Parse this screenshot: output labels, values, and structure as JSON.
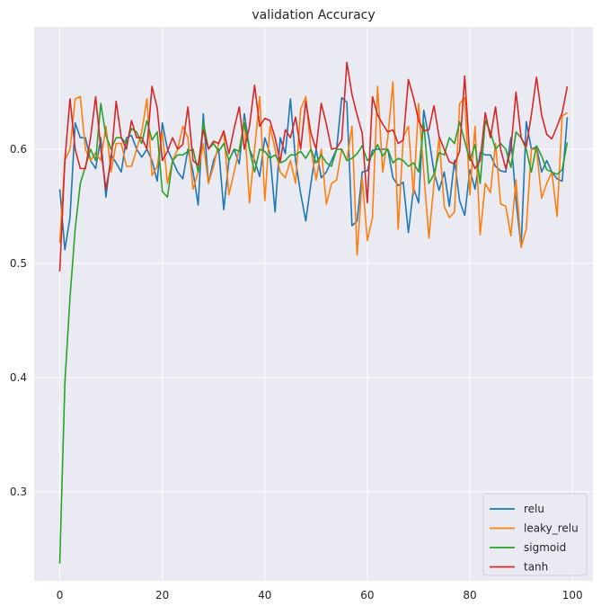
{
  "chart_data": {
    "type": "line",
    "title": "validation Accuracy",
    "xlabel": "",
    "ylabel": "",
    "xlim": [
      -5,
      104
    ],
    "ylim": [
      0.222,
      0.707
    ],
    "xticks": [
      0,
      20,
      40,
      60,
      80,
      100
    ],
    "yticks": [
      0.3,
      0.4,
      0.5,
      0.6
    ],
    "ytick_labels": [
      "0.3",
      "0.4",
      "0.5",
      "0.6"
    ],
    "xtick_labels": [
      "0",
      "20",
      "40",
      "60",
      "80",
      "100"
    ],
    "grid": true,
    "legend_position": "bottom-right",
    "series": [
      {
        "name": "relu",
        "color": "#1f77b4",
        "values": [
          0.565,
          0.512,
          0.54,
          0.623,
          0.61,
          0.61,
          0.59,
          0.583,
          0.61,
          0.558,
          0.595,
          0.588,
          0.58,
          0.61,
          0.612,
          0.6,
          0.593,
          0.6,
          0.59,
          0.572,
          0.623,
          0.6,
          0.59,
          0.58,
          0.574,
          0.6,
          0.58,
          0.551,
          0.631,
          0.57,
          0.59,
          0.6,
          0.547,
          0.59,
          0.6,
          0.587,
          0.631,
          0.6,
          0.59,
          0.576,
          0.61,
          0.596,
          0.545,
          0.61,
          0.596,
          0.644,
          0.59,
          0.561,
          0.537,
          0.57,
          0.6,
          0.575,
          0.58,
          0.59,
          0.6,
          0.645,
          0.641,
          0.533,
          0.537,
          0.58,
          0.581,
          0.599,
          0.6,
          0.6,
          0.6,
          0.575,
          0.568,
          0.571,
          0.527,
          0.566,
          0.553,
          0.634,
          0.61,
          0.58,
          0.564,
          0.58,
          0.55,
          0.59,
          0.555,
          0.542,
          0.582,
          0.565,
          0.597,
          0.595,
          0.595,
          0.585,
          0.581,
          0.58,
          0.61,
          0.555,
          0.514,
          0.624,
          0.6,
          0.602,
          0.58,
          0.59,
          0.58,
          0.574,
          0.572,
          0.628
        ]
      },
      {
        "name": "leaky_relu",
        "color": "#ff7f0e",
        "values": [
          0.518,
          0.59,
          0.6,
          0.644,
          0.646,
          0.6,
          0.59,
          0.597,
          0.59,
          0.62,
          0.58,
          0.605,
          0.605,
          0.585,
          0.585,
          0.6,
          0.615,
          0.644,
          0.577,
          0.585,
          0.615,
          0.57,
          0.59,
          0.6,
          0.62,
          0.61,
          0.565,
          0.58,
          0.605,
          0.57,
          0.585,
          0.605,
          0.615,
          0.56,
          0.58,
          0.6,
          0.625,
          0.553,
          0.6,
          0.646,
          0.555,
          0.62,
          0.6,
          0.58,
          0.575,
          0.59,
          0.57,
          0.635,
          0.646,
          0.6,
          0.573,
          0.6,
          0.552,
          0.57,
          0.573,
          0.6,
          0.59,
          0.62,
          0.507,
          0.575,
          0.52,
          0.54,
          0.655,
          0.58,
          0.61,
          0.659,
          0.53,
          0.61,
          0.62,
          0.56,
          0.64,
          0.58,
          0.522,
          0.57,
          0.61,
          0.55,
          0.54,
          0.545,
          0.64,
          0.645,
          0.56,
          0.62,
          0.525,
          0.57,
          0.562,
          0.605,
          0.552,
          0.55,
          0.524,
          0.573,
          0.514,
          0.53,
          0.6,
          0.6,
          0.557,
          0.57,
          0.58,
          0.541,
          0.629,
          0.632
        ]
      },
      {
        "name": "sigmoid",
        "color": "#2ca02c",
        "values": [
          0.237,
          0.395,
          0.47,
          0.53,
          0.57,
          0.585,
          0.6,
          0.59,
          0.64,
          0.612,
          0.6,
          0.61,
          0.61,
          0.605,
          0.618,
          0.615,
          0.605,
          0.625,
          0.608,
          0.615,
          0.563,
          0.558,
          0.59,
          0.595,
          0.595,
          0.598,
          0.6,
          0.58,
          0.624,
          0.6,
          0.605,
          0.598,
          0.605,
          0.59,
          0.6,
          0.598,
          0.623,
          0.6,
          0.58,
          0.6,
          0.598,
          0.592,
          0.595,
          0.588,
          0.59,
          0.595,
          0.595,
          0.598,
          0.592,
          0.6,
          0.588,
          0.595,
          0.588,
          0.585,
          0.6,
          0.6,
          0.59,
          0.592,
          0.596,
          0.603,
          0.59,
          0.595,
          0.604,
          0.594,
          0.6,
          0.588,
          0.592,
          0.59,
          0.585,
          0.588,
          0.58,
          0.623,
          0.57,
          0.578,
          0.597,
          0.595,
          0.61,
          0.605,
          0.624,
          0.607,
          0.59,
          0.604,
          0.57,
          0.625,
          0.615,
          0.6,
          0.605,
          0.6,
          0.584,
          0.615,
          0.61,
          0.6,
          0.58,
          0.603,
          0.594,
          0.582,
          0.58,
          0.578,
          0.582,
          0.606
        ]
      },
      {
        "name": "tanh",
        "color": "#d62728",
        "values": [
          0.493,
          0.59,
          0.644,
          0.6,
          0.583,
          0.583,
          0.61,
          0.646,
          0.6,
          0.565,
          0.59,
          0.642,
          0.61,
          0.6,
          0.625,
          0.61,
          0.61,
          0.6,
          0.655,
          0.636,
          0.59,
          0.598,
          0.61,
          0.6,
          0.604,
          0.637,
          0.59,
          0.586,
          0.617,
          0.6,
          0.607,
          0.605,
          0.616,
          0.596,
          0.618,
          0.637,
          0.6,
          0.62,
          0.656,
          0.62,
          0.627,
          0.625,
          0.61,
          0.589,
          0.617,
          0.61,
          0.628,
          0.6,
          0.642,
          0.614,
          0.6,
          0.64,
          0.622,
          0.6,
          0.601,
          0.608,
          0.676,
          0.648,
          0.63,
          0.614,
          0.553,
          0.646,
          0.63,
          0.622,
          0.615,
          0.617,
          0.605,
          0.608,
          0.661,
          0.645,
          0.625,
          0.616,
          0.617,
          0.638,
          0.611,
          0.6,
          0.589,
          0.587,
          0.598,
          0.664,
          0.593,
          0.583,
          0.59,
          0.632,
          0.61,
          0.637,
          0.6,
          0.583,
          0.6,
          0.65,
          0.61,
          0.602,
          0.63,
          0.663,
          0.63,
          0.613,
          0.609,
          0.62,
          0.632,
          0.655
        ]
      }
    ]
  }
}
